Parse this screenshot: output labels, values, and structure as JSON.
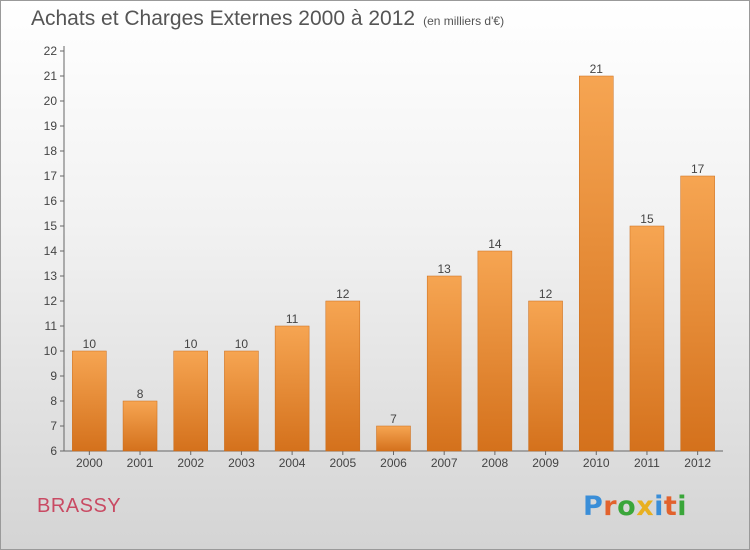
{
  "title": {
    "main": "Achats et Charges Externes 2000 à 2012",
    "sub": "(en milliers d'€)"
  },
  "footer": {
    "commune": "BRASSY",
    "logo_text": "Proxiti"
  },
  "colors": {
    "bar_top": "#f6a552",
    "bar_bottom": "#d4711c",
    "commune": "#c94a63",
    "logo_letters": [
      "#3a8ed8",
      "#e2622d",
      "#3aa63a",
      "#e8b020",
      "#3a8ed8",
      "#e2622d",
      "#3aa63a"
    ]
  },
  "chart_data": {
    "type": "bar",
    "title": "Achats et Charges Externes 2000 à 2012",
    "subtitle": "(en milliers d'€)",
    "xlabel": "",
    "ylabel": "",
    "categories": [
      "2000",
      "2001",
      "2002",
      "2003",
      "2004",
      "2005",
      "2006",
      "2007",
      "2008",
      "2009",
      "2010",
      "2011",
      "2012"
    ],
    "values": [
      10,
      8,
      10,
      10,
      11,
      12,
      7,
      13,
      14,
      12,
      21,
      15,
      17
    ],
    "ylim": [
      6,
      22
    ],
    "yticks": [
      6,
      7,
      8,
      9,
      10,
      11,
      12,
      13,
      14,
      15,
      16,
      17,
      18,
      19,
      20,
      21,
      22
    ],
    "grid": false,
    "data_labels": true,
    "legend": "none"
  }
}
